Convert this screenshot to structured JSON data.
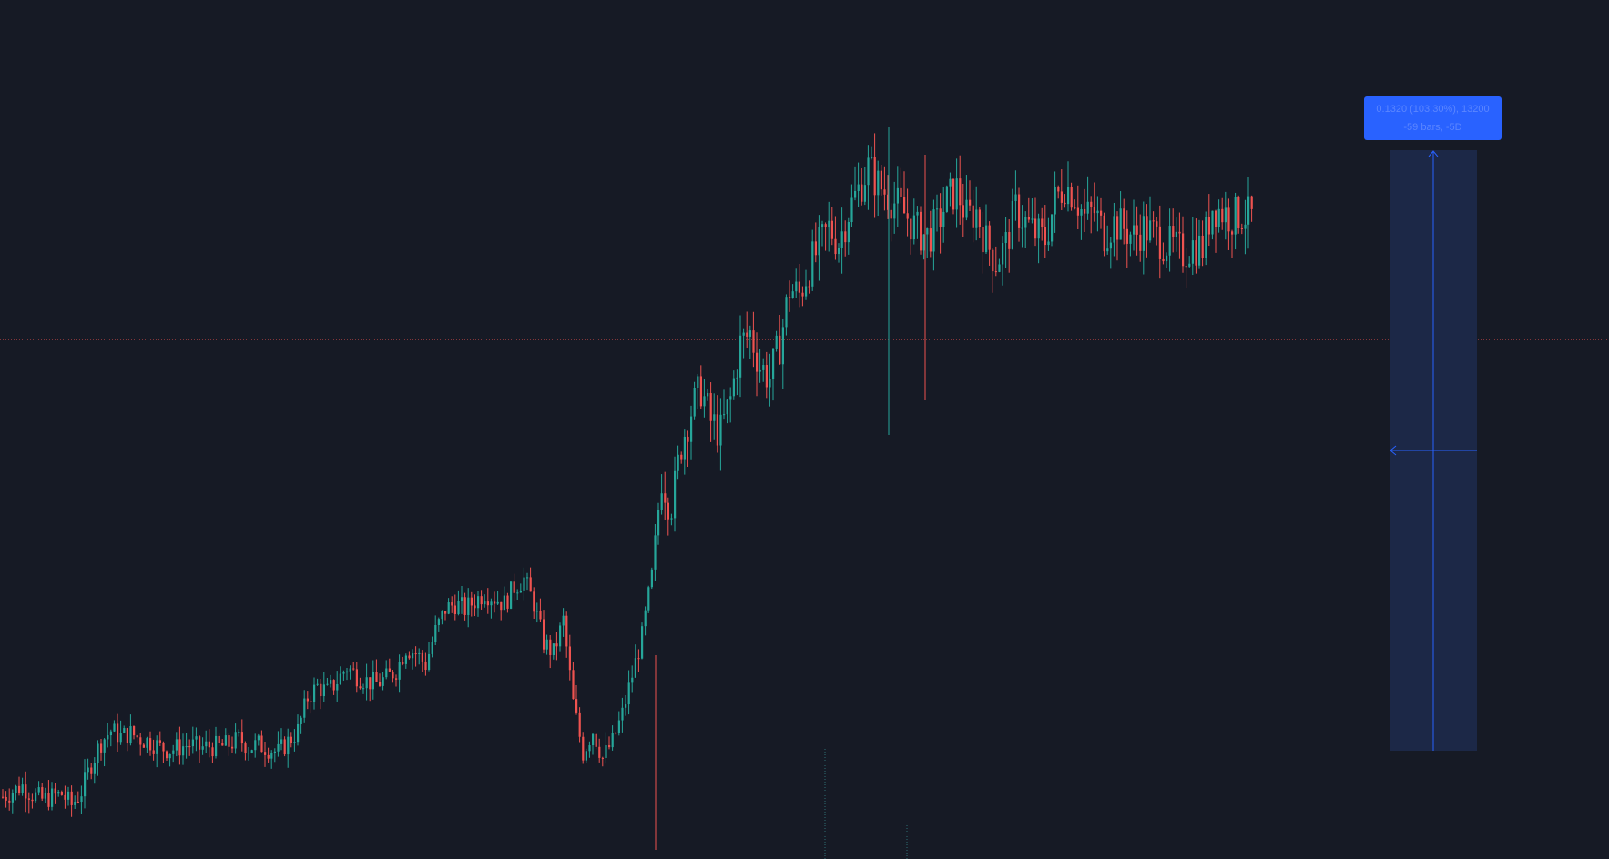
{
  "chart": {
    "background_color": "#161a25",
    "up_color": "#26a69a",
    "down_color": "#ef5350",
    "current_price_line_color": "#ef5350",
    "measure_fill_color": "#1c2847",
    "measure_line_color": "#2962ff",
    "measure_label_color": "#2962ff"
  },
  "measure_tool": {
    "line1": "0.1320 (103.30%), 13200",
    "line2": "-59 bars, -5D"
  },
  "chart_data": {
    "type": "candlestick",
    "title": "",
    "xlabel": "",
    "ylabel": "",
    "grid": false,
    "legend": "none",
    "close_path": [
      [
        0,
        0.098
      ],
      [
        3,
        0.099
      ],
      [
        6,
        0.1
      ],
      [
        9,
        0.0985
      ],
      [
        12,
        0.0975
      ],
      [
        15,
        0.098
      ],
      [
        18,
        0.0985
      ],
      [
        21,
        0.0965
      ],
      [
        24,
        0.099
      ],
      [
        27,
        0.104
      ],
      [
        30,
        0.108
      ],
      [
        33,
        0.11
      ],
      [
        36,
        0.109
      ],
      [
        39,
        0.1095
      ],
      [
        42,
        0.1085
      ],
      [
        45,
        0.108
      ],
      [
        48,
        0.107
      ],
      [
        51,
        0.1065
      ],
      [
        54,
        0.107
      ],
      [
        57,
        0.1075
      ],
      [
        60,
        0.1068
      ],
      [
        63,
        0.1072
      ],
      [
        66,
        0.107
      ],
      [
        69,
        0.1075
      ],
      [
        72,
        0.1085
      ],
      [
        75,
        0.107
      ],
      [
        78,
        0.1075
      ],
      [
        81,
        0.1068
      ],
      [
        84,
        0.106
      ],
      [
        87,
        0.108
      ],
      [
        90,
        0.11
      ],
      [
        93,
        0.116
      ],
      [
        96,
        0.118
      ],
      [
        99,
        0.117
      ],
      [
        102,
        0.119
      ],
      [
        105,
        0.1215
      ],
      [
        108,
        0.12
      ],
      [
        111,
        0.119
      ],
      [
        114,
        0.1185
      ],
      [
        117,
        0.1195
      ],
      [
        120,
        0.121
      ],
      [
        123,
        0.125
      ],
      [
        126,
        0.124
      ],
      [
        129,
        0.122
      ],
      [
        132,
        0.128
      ],
      [
        135,
        0.132
      ],
      [
        138,
        0.133
      ],
      [
        141,
        0.132
      ],
      [
        144,
        0.1335
      ],
      [
        147,
        0.135
      ],
      [
        150,
        0.134
      ],
      [
        153,
        0.133
      ],
      [
        156,
        0.136
      ],
      [
        159,
        0.1375
      ],
      [
        162,
        0.133
      ],
      [
        165,
        0.126
      ],
      [
        168,
        0.124
      ],
      [
        171,
        0.13
      ],
      [
        174,
        0.115
      ],
      [
        177,
        0.106
      ],
      [
        180,
        0.11
      ],
      [
        183,
        0.105
      ],
      [
        186,
        0.108
      ],
      [
        189,
        0.113
      ],
      [
        192,
        0.12
      ],
      [
        195,
        0.127
      ],
      [
        198,
        0.138
      ],
      [
        201,
        0.156
      ],
      [
        204,
        0.15
      ],
      [
        207,
        0.162
      ],
      [
        210,
        0.168
      ],
      [
        213,
        0.172
      ],
      [
        216,
        0.166
      ],
      [
        219,
        0.164
      ],
      [
        222,
        0.17
      ],
      [
        225,
        0.18
      ],
      [
        228,
        0.182
      ],
      [
        231,
        0.176
      ],
      [
        234,
        0.174
      ],
      [
        237,
        0.18
      ],
      [
        240,
        0.19
      ],
      [
        243,
        0.189
      ],
      [
        246,
        0.194
      ],
      [
        249,
        0.1975
      ],
      [
        252,
        0.201
      ],
      [
        255,
        0.1985
      ],
      [
        258,
        0.204
      ],
      [
        261,
        0.208
      ],
      [
        264,
        0.212
      ],
      [
        267,
        0.209
      ],
      [
        270,
        0.207
      ],
      [
        273,
        0.205
      ],
      [
        276,
        0.203
      ],
      [
        279,
        0.2005
      ],
      [
        282,
        0.1995
      ],
      [
        285,
        0.2015
      ],
      [
        288,
        0.206
      ],
      [
        291,
        0.208
      ],
      [
        294,
        0.203
      ],
      [
        297,
        0.204
      ],
      [
        300,
        0.1985
      ],
      [
        303,
        0.195
      ],
      [
        306,
        0.198
      ],
      [
        309,
        0.2045
      ],
      [
        312,
        0.202
      ],
      [
        315,
        0.2
      ],
      [
        318,
        0.199
      ],
      [
        321,
        0.206
      ],
      [
        324,
        0.209
      ],
      [
        327,
        0.207
      ],
      [
        330,
        0.203
      ],
      [
        333,
        0.204
      ],
      [
        336,
        0.2
      ],
      [
        339,
        0.202
      ],
      [
        342,
        0.201
      ],
      [
        345,
        0.1995
      ],
      [
        348,
        0.201
      ],
      [
        351,
        0.2
      ],
      [
        354,
        0.1985
      ],
      [
        357,
        0.1975
      ],
      [
        360,
        0.1965
      ],
      [
        363,
        0.198
      ],
      [
        366,
        0.1975
      ],
      [
        369,
        0.205
      ],
      [
        372,
        0.204
      ],
      [
        375,
        0.203
      ],
      [
        378,
        0.2035
      ],
      [
        381,
        0.203
      ]
    ]
  }
}
